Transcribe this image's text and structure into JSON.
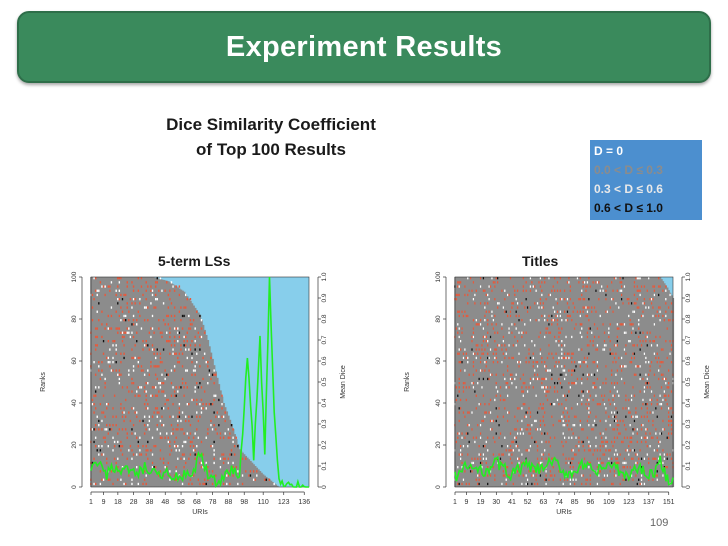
{
  "slide": {
    "title": "Experiment Results",
    "subtitle_line1": "Dice Similarity Coefficient",
    "subtitle_line2": "of Top 100 Results",
    "page_number": "109"
  },
  "legend": {
    "items": [
      {
        "label": "D = 0",
        "color": "#ffffff"
      },
      {
        "label": "0.0 < D ≤ 0.3",
        "color": "#8c8c8c"
      },
      {
        "label": "0.3 < D ≤ 0.6",
        "color": "#e9e9e9"
      },
      {
        "label": "0.6 < D ≤ 1.0",
        "color": "#111111"
      }
    ]
  },
  "colors": {
    "grey_cell": "#8c8c8c",
    "red_cell": "#e8593b",
    "white_cell": "#ffffff",
    "black_cell": "#111111",
    "empty_cell": "#87ceeb",
    "mean_line": "#22ee22"
  },
  "chart_data": [
    {
      "type": "heatmap",
      "title": "5-term LSs",
      "xlabel": "URIs",
      "ylabel": "Ranks",
      "y2label": "Mean Dice",
      "x_ticks": [
        "1",
        "9",
        "18",
        "28",
        "38",
        "48",
        "58",
        "68",
        "78",
        "88",
        "98",
        "110",
        "123",
        "136"
      ],
      "xlim": [
        1,
        139
      ],
      "y_ticks": [
        "0",
        "20",
        "40",
        "60",
        "80",
        "100"
      ],
      "ylim": [
        0,
        100
      ],
      "y2_ticks": [
        "0",
        "0.1",
        "0.2",
        "0.3",
        "0.4",
        "0.5",
        "0.6",
        "0.7",
        "0.8",
        "0.9",
        "1.0"
      ],
      "y2lim": [
        0,
        1.0
      ],
      "mean_dice_profile": [
        [
          1,
          0.07
        ],
        [
          5,
          0.12
        ],
        [
          10,
          0.05
        ],
        [
          15,
          0.1
        ],
        [
          20,
          0.06
        ],
        [
          25,
          0.08
        ],
        [
          30,
          0.05
        ],
        [
          35,
          0.09
        ],
        [
          40,
          0.06
        ],
        [
          45,
          0.05
        ],
        [
          50,
          0.07
        ],
        [
          55,
          0.04
        ],
        [
          60,
          0.05
        ],
        [
          65,
          0.04
        ],
        [
          70,
          0.16
        ],
        [
          75,
          0.05
        ],
        [
          80,
          0.03
        ],
        [
          85,
          0.04
        ],
        [
          90,
          0.08
        ],
        [
          95,
          0.05
        ],
        [
          100,
          0.62
        ],
        [
          104,
          0.15
        ],
        [
          108,
          0.7
        ],
        [
          111,
          0.15
        ],
        [
          114,
          1.0
        ],
        [
          117,
          0.35
        ],
        [
          120,
          0.02
        ],
        [
          125,
          0.0
        ]
      ],
      "coverage_profile": [
        [
          1,
          100
        ],
        [
          20,
          100
        ],
        [
          40,
          100
        ],
        [
          50,
          98
        ],
        [
          60,
          93
        ],
        [
          70,
          82
        ],
        [
          75,
          70
        ],
        [
          80,
          55
        ],
        [
          85,
          40
        ],
        [
          90,
          30
        ],
        [
          95,
          18
        ],
        [
          100,
          14
        ],
        [
          105,
          10
        ],
        [
          110,
          6
        ],
        [
          115,
          3
        ],
        [
          120,
          0
        ],
        [
          139,
          0
        ]
      ]
    },
    {
      "type": "heatmap",
      "title": "Titles",
      "xlabel": "URIs",
      "ylabel": "Ranks",
      "y2label": "Mean Dice",
      "x_ticks": [
        "1",
        "9",
        "19",
        "30",
        "41",
        "52",
        "63",
        "74",
        "85",
        "96",
        "109",
        "123",
        "137",
        "151"
      ],
      "xlim": [
        1,
        154
      ],
      "y_ticks": [
        "0",
        "20",
        "40",
        "60",
        "80",
        "100"
      ],
      "ylim": [
        0,
        100
      ],
      "y2_ticks": [
        "0",
        "0.1",
        "0.2",
        "0.3",
        "0.4",
        "0.5",
        "0.6",
        "0.7",
        "0.8",
        "0.9",
        "1.0"
      ],
      "y2lim": [
        0,
        1.0
      ],
      "mean_dice_profile": [
        [
          1,
          0.05
        ],
        [
          10,
          0.1
        ],
        [
          20,
          0.07
        ],
        [
          30,
          0.12
        ],
        [
          40,
          0.06
        ],
        [
          50,
          0.1
        ],
        [
          60,
          0.08
        ],
        [
          70,
          0.12
        ],
        [
          80,
          0.06
        ],
        [
          90,
          0.1
        ],
        [
          100,
          0.07
        ],
        [
          110,
          0.11
        ],
        [
          120,
          0.05
        ],
        [
          130,
          0.09
        ],
        [
          140,
          0.06
        ],
        [
          145,
          0.12
        ],
        [
          150,
          0.04
        ]
      ],
      "coverage_profile": [
        [
          1,
          100
        ],
        [
          100,
          100
        ],
        [
          130,
          100
        ],
        [
          145,
          100
        ],
        [
          150,
          95
        ],
        [
          154,
          90
        ]
      ]
    }
  ]
}
